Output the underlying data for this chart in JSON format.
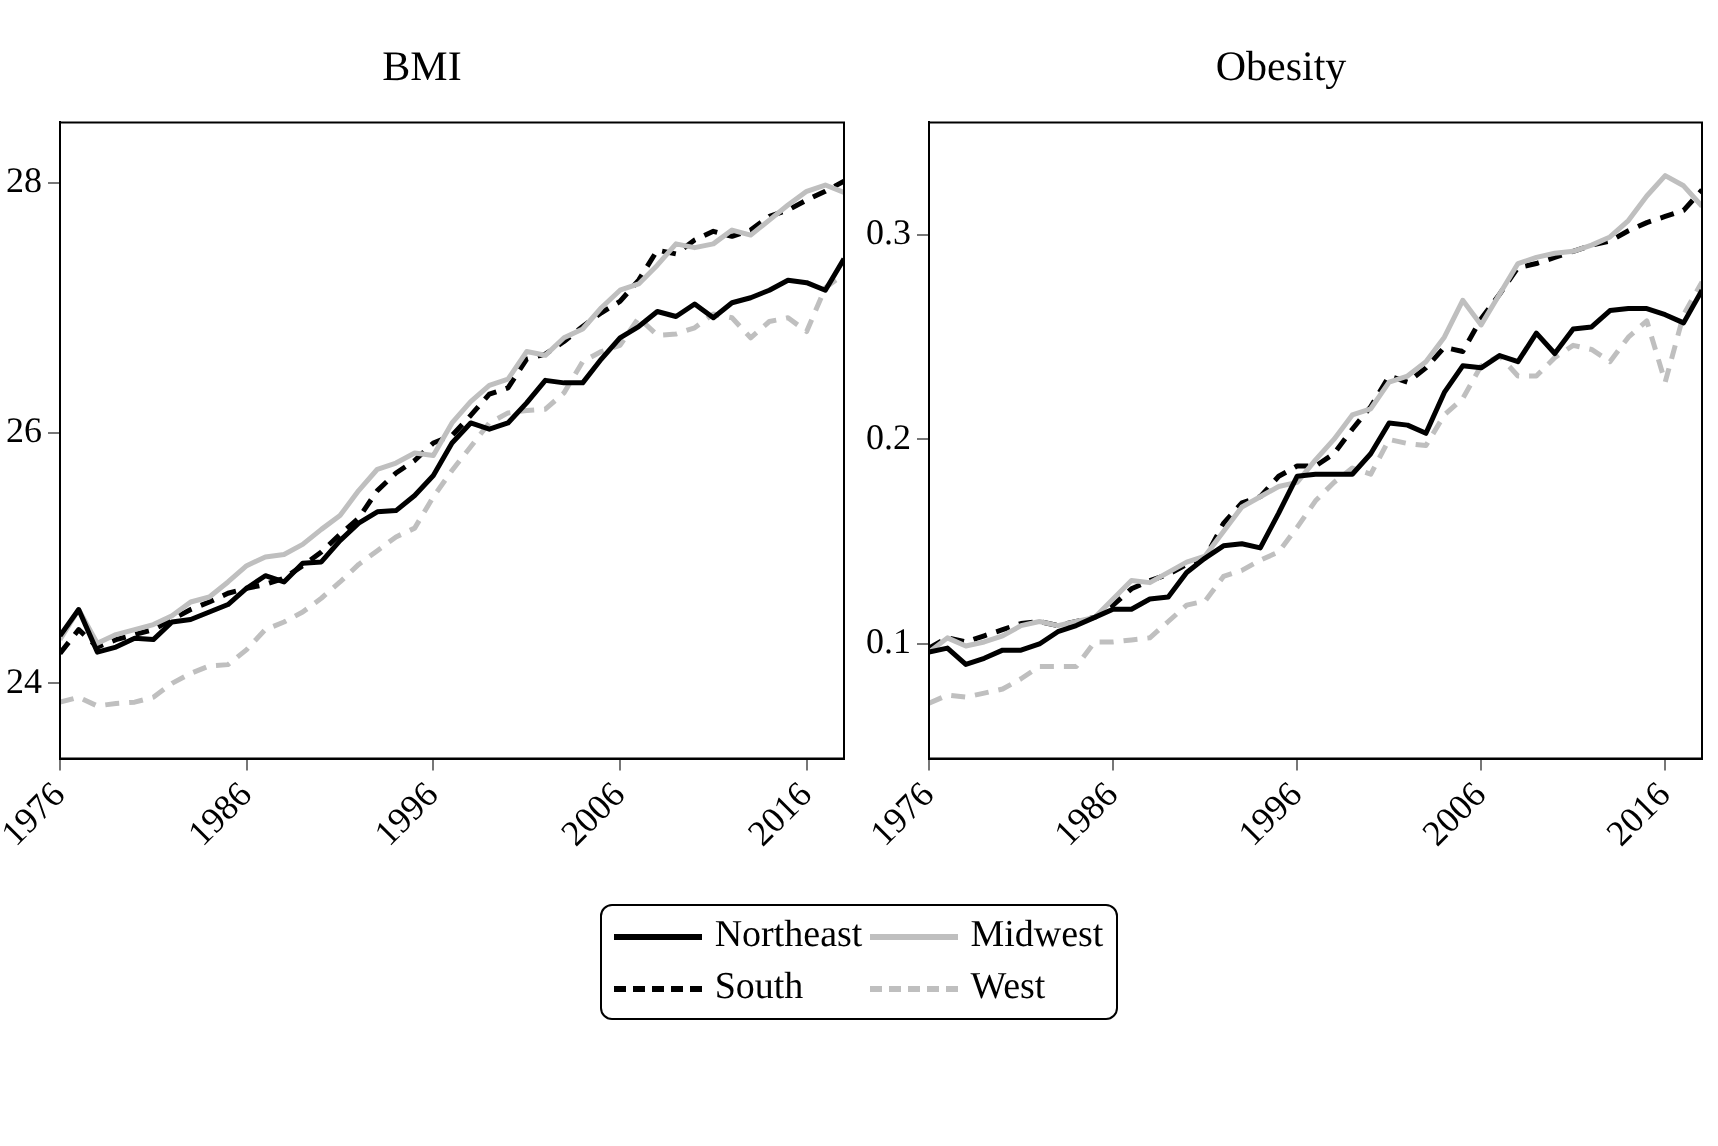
{
  "chart_data": [
    {
      "type": "line",
      "title": "BMI",
      "x": [
        1976,
        1977,
        1978,
        1979,
        1980,
        1981,
        1982,
        1983,
        1984,
        1985,
        1986,
        1987,
        1988,
        1989,
        1990,
        1991,
        1992,
        1993,
        1994,
        1995,
        1996,
        1997,
        1998,
        1999,
        2000,
        2001,
        2002,
        2003,
        2004,
        2005,
        2006,
        2007,
        2008,
        2009,
        2010,
        2011,
        2012,
        2013,
        2014,
        2015,
        2016,
        2017,
        2018
      ],
      "xlim": [
        1976,
        2018
      ],
      "xticks": [
        1976,
        1986,
        1996,
        2006,
        2016
      ],
      "ylim": [
        23.4,
        28.48
      ],
      "yticks": [
        24,
        26,
        28
      ],
      "grid": false,
      "legend": "bottom",
      "marker": "none",
      "series": [
        {
          "name": "Northeast",
          "color": "#000000",
          "line_style": "solid",
          "values": [
            24.38,
            24.59,
            24.25,
            24.29,
            24.36,
            24.35,
            24.49,
            24.51,
            24.57,
            24.63,
            24.76,
            24.86,
            24.81,
            24.96,
            24.97,
            25.14,
            25.28,
            25.37,
            25.38,
            25.5,
            25.66,
            25.92,
            26.08,
            26.03,
            26.08,
            26.24,
            26.42,
            26.4,
            26.4,
            26.59,
            26.76,
            26.85,
            26.97,
            26.93,
            27.03,
            26.92,
            27.04,
            27.08,
            27.14,
            27.22,
            27.2,
            27.14,
            27.39
          ]
        },
        {
          "name": "Midwest",
          "color": "#bfbfbf",
          "line_style": "solid",
          "values": [
            24.35,
            24.59,
            24.32,
            24.39,
            24.43,
            24.47,
            24.54,
            24.65,
            24.69,
            24.81,
            24.94,
            25.01,
            25.03,
            25.11,
            25.23,
            25.34,
            25.54,
            25.71,
            25.76,
            25.84,
            25.82,
            26.08,
            26.25,
            26.38,
            26.43,
            26.65,
            26.62,
            26.76,
            26.83,
            27.0,
            27.14,
            27.19,
            27.34,
            27.51,
            27.48,
            27.51,
            27.62,
            27.58,
            27.7,
            27.82,
            27.93,
            27.98,
            27.92
          ]
        },
        {
          "name": "South",
          "color": "#000000",
          "line_style": "dashed",
          "values": [
            24.24,
            24.43,
            24.29,
            24.35,
            24.39,
            24.43,
            24.51,
            24.59,
            24.65,
            24.72,
            24.76,
            24.79,
            24.84,
            24.94,
            25.05,
            25.19,
            25.32,
            25.54,
            25.68,
            25.78,
            25.92,
            25.98,
            26.14,
            26.31,
            26.36,
            26.59,
            26.63,
            26.73,
            26.85,
            26.96,
            27.05,
            27.22,
            27.46,
            27.43,
            27.54,
            27.61,
            27.57,
            27.62,
            27.73,
            27.78,
            27.86,
            27.93,
            28.01
          ]
        },
        {
          "name": "West",
          "color": "#bfbfbf",
          "line_style": "dashed",
          "values": [
            23.85,
            23.89,
            23.82,
            23.84,
            23.85,
            23.89,
            24.0,
            24.08,
            24.14,
            24.15,
            24.27,
            24.43,
            24.49,
            24.57,
            24.68,
            24.81,
            24.95,
            25.06,
            25.17,
            25.24,
            25.49,
            25.7,
            25.89,
            26.08,
            26.16,
            26.18,
            26.19,
            26.32,
            26.57,
            26.65,
            26.7,
            26.92,
            26.78,
            26.79,
            26.84,
            26.95,
            26.92,
            26.76,
            26.89,
            26.92,
            26.81,
            27.16,
            27.27
          ]
        }
      ]
    },
    {
      "type": "line",
      "title": "Obesity",
      "x": [
        1976,
        1977,
        1978,
        1979,
        1980,
        1981,
        1982,
        1983,
        1984,
        1985,
        1986,
        1987,
        1988,
        1989,
        1990,
        1991,
        1992,
        1993,
        1994,
        1995,
        1996,
        1997,
        1998,
        1999,
        2000,
        2001,
        2002,
        2003,
        2004,
        2005,
        2006,
        2007,
        2008,
        2009,
        2010,
        2011,
        2012,
        2013,
        2014,
        2015,
        2016,
        2017,
        2018
      ],
      "xlim": [
        1976,
        2018
      ],
      "xticks": [
        1976,
        1986,
        1996,
        2006,
        2016
      ],
      "ylim": [
        0.044,
        0.355
      ],
      "yticks": [
        0.1,
        0.2,
        0.3
      ],
      "grid": false,
      "legend": false,
      "marker": "none",
      "series": [
        {
          "color": "#000000",
          "line_style": "solid",
          "values": [
            0.096,
            0.098,
            0.09,
            0.093,
            0.097,
            0.097,
            0.1,
            0.106,
            0.109,
            0.113,
            0.117,
            0.117,
            0.122,
            0.123,
            0.135,
            0.142,
            0.148,
            0.149,
            0.147,
            0.164,
            0.182,
            0.183,
            0.183,
            0.183,
            0.193,
            0.208,
            0.207,
            0.203,
            0.223,
            0.236,
            0.235,
            0.241,
            0.238,
            0.252,
            0.242,
            0.254,
            0.255,
            0.263,
            0.264,
            0.264,
            0.261,
            0.257,
            0.273
          ]
        },
        {
          "color": "#bfbfbf",
          "line_style": "solid",
          "values": [
            0.096,
            0.103,
            0.099,
            0.101,
            0.104,
            0.109,
            0.111,
            0.109,
            0.111,
            0.113,
            0.122,
            0.131,
            0.13,
            0.135,
            0.14,
            0.143,
            0.155,
            0.167,
            0.172,
            0.177,
            0.179,
            0.19,
            0.2,
            0.212,
            0.215,
            0.228,
            0.231,
            0.238,
            0.25,
            0.268,
            0.256,
            0.271,
            0.286,
            0.289,
            0.291,
            0.292,
            0.295,
            0.299,
            0.307,
            0.319,
            0.329,
            0.324,
            0.314
          ]
        },
        {
          "color": "#000000",
          "line_style": "dashed",
          "values": [
            0.098,
            0.103,
            0.101,
            0.104,
            0.107,
            0.11,
            0.111,
            0.109,
            0.111,
            0.113,
            0.119,
            0.127,
            0.131,
            0.134,
            0.139,
            0.142,
            0.159,
            0.169,
            0.172,
            0.182,
            0.187,
            0.187,
            0.193,
            0.205,
            0.216,
            0.231,
            0.228,
            0.235,
            0.245,
            0.243,
            0.259,
            0.271,
            0.284,
            0.286,
            0.289,
            0.292,
            0.295,
            0.297,
            0.302,
            0.306,
            0.309,
            0.312,
            0.322
          ]
        },
        {
          "color": "#bfbfbf",
          "line_style": "dashed",
          "values": [
            0.071,
            0.075,
            0.074,
            0.076,
            0.078,
            0.083,
            0.089,
            0.089,
            0.089,
            0.101,
            0.101,
            0.102,
            0.103,
            0.111,
            0.119,
            0.121,
            0.133,
            0.136,
            0.141,
            0.145,
            0.157,
            0.17,
            0.179,
            0.186,
            0.183,
            0.2,
            0.198,
            0.197,
            0.212,
            0.22,
            0.236,
            0.241,
            0.231,
            0.231,
            0.24,
            0.246,
            0.244,
            0.238,
            0.25,
            0.258,
            0.228,
            0.261,
            0.277
          ]
        }
      ]
    }
  ]
}
